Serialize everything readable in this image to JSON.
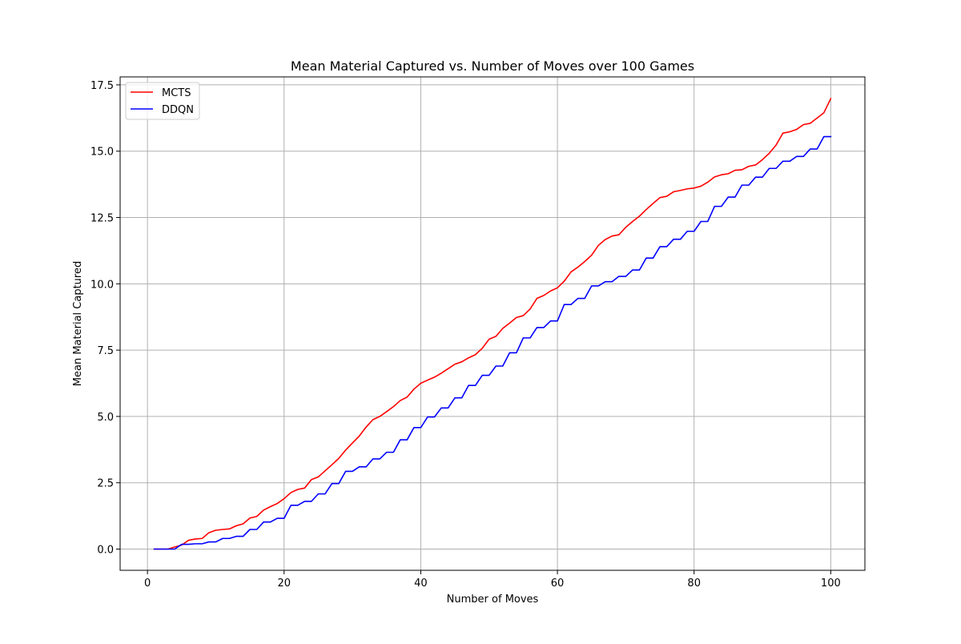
{
  "chart_data": {
    "type": "line",
    "title": "Mean Material Captured vs. Number of Moves over 100 Games",
    "xlabel": "Number of Moves",
    "ylabel": "Mean Material Captured",
    "xlim": [
      -4,
      105
    ],
    "ylim": [
      -0.8,
      17.8
    ],
    "xticks": [
      0,
      20,
      40,
      60,
      80,
      100
    ],
    "xtick_labels": [
      "0",
      "20",
      "40",
      "60",
      "80",
      "100"
    ],
    "yticks": [
      0,
      2.5,
      5,
      7.5,
      10,
      12.5,
      15,
      17.5
    ],
    "ytick_labels": [
      "0.0",
      "2.5",
      "5.0",
      "7.5",
      "10.0",
      "12.5",
      "15.0",
      "17.5"
    ],
    "grid": true,
    "legend_position": "upper-left",
    "series": [
      {
        "name": "MCTS",
        "color": "#ff0000",
        "points": [
          [
            1,
            0
          ],
          [
            2,
            0
          ],
          [
            3,
            0
          ],
          [
            4,
            0.08
          ],
          [
            5,
            0.15
          ],
          [
            6,
            0.33
          ],
          [
            7,
            0.38
          ],
          [
            8,
            0.4
          ],
          [
            9,
            0.62
          ],
          [
            10,
            0.71
          ],
          [
            11,
            0.74
          ],
          [
            12,
            0.76
          ],
          [
            13,
            0.88
          ],
          [
            14,
            0.95
          ],
          [
            15,
            1.17
          ],
          [
            16,
            1.23
          ],
          [
            17,
            1.47
          ],
          [
            18,
            1.6
          ],
          [
            19,
            1.72
          ],
          [
            20,
            1.9
          ],
          [
            21,
            2.13
          ],
          [
            22,
            2.25
          ],
          [
            23,
            2.3
          ],
          [
            24,
            2.62
          ],
          [
            25,
            2.72
          ],
          [
            26,
            2.95
          ],
          [
            27,
            3.18
          ],
          [
            28,
            3.42
          ],
          [
            29,
            3.73
          ],
          [
            30,
            4.0
          ],
          [
            31,
            4.26
          ],
          [
            32,
            4.6
          ],
          [
            33,
            4.88
          ],
          [
            34,
            5.0
          ],
          [
            35,
            5.18
          ],
          [
            36,
            5.37
          ],
          [
            37,
            5.6
          ],
          [
            38,
            5.73
          ],
          [
            39,
            6.03
          ],
          [
            40,
            6.25
          ],
          [
            41,
            6.37
          ],
          [
            42,
            6.48
          ],
          [
            43,
            6.63
          ],
          [
            44,
            6.8
          ],
          [
            45,
            6.97
          ],
          [
            46,
            7.06
          ],
          [
            47,
            7.21
          ],
          [
            48,
            7.33
          ],
          [
            49,
            7.57
          ],
          [
            50,
            7.91
          ],
          [
            51,
            8.02
          ],
          [
            52,
            8.32
          ],
          [
            53,
            8.52
          ],
          [
            54,
            8.73
          ],
          [
            55,
            8.8
          ],
          [
            56,
            9.05
          ],
          [
            57,
            9.45
          ],
          [
            58,
            9.56
          ],
          [
            59,
            9.73
          ],
          [
            60,
            9.85
          ],
          [
            61,
            10.1
          ],
          [
            62,
            10.45
          ],
          [
            63,
            10.63
          ],
          [
            64,
            10.84
          ],
          [
            65,
            11.08
          ],
          [
            66,
            11.45
          ],
          [
            67,
            11.67
          ],
          [
            68,
            11.8
          ],
          [
            69,
            11.85
          ],
          [
            70,
            12.13
          ],
          [
            71,
            12.35
          ],
          [
            72,
            12.55
          ],
          [
            73,
            12.8
          ],
          [
            74,
            13.03
          ],
          [
            75,
            13.25
          ],
          [
            76,
            13.3
          ],
          [
            77,
            13.47
          ],
          [
            78,
            13.52
          ],
          [
            79,
            13.58
          ],
          [
            80,
            13.61
          ],
          [
            81,
            13.68
          ],
          [
            82,
            13.83
          ],
          [
            83,
            14.03
          ],
          [
            84,
            14.11
          ],
          [
            85,
            14.15
          ],
          [
            86,
            14.28
          ],
          [
            87,
            14.3
          ],
          [
            88,
            14.43
          ],
          [
            89,
            14.48
          ],
          [
            90,
            14.68
          ],
          [
            91,
            14.92
          ],
          [
            92,
            15.23
          ],
          [
            93,
            15.68
          ],
          [
            94,
            15.73
          ],
          [
            95,
            15.82
          ],
          [
            96,
            16.0
          ],
          [
            97,
            16.05
          ],
          [
            98,
            16.25
          ],
          [
            99,
            16.45
          ],
          [
            100,
            16.98
          ]
        ]
      },
      {
        "name": "DDQN",
        "color": "#0000ff",
        "points": [
          [
            1,
            0
          ],
          [
            2,
            0
          ],
          [
            3,
            0
          ],
          [
            4,
            0
          ],
          [
            5,
            0.18
          ],
          [
            6,
            0.18
          ],
          [
            7,
            0.2
          ],
          [
            8,
            0.2
          ],
          [
            9,
            0.27
          ],
          [
            10,
            0.27
          ],
          [
            11,
            0.4
          ],
          [
            12,
            0.4
          ],
          [
            13,
            0.48
          ],
          [
            14,
            0.48
          ],
          [
            15,
            0.74
          ],
          [
            16,
            0.74
          ],
          [
            17,
            1.02
          ],
          [
            18,
            1.02
          ],
          [
            19,
            1.16
          ],
          [
            20,
            1.16
          ],
          [
            21,
            1.65
          ],
          [
            22,
            1.65
          ],
          [
            23,
            1.8
          ],
          [
            24,
            1.8
          ],
          [
            25,
            2.08
          ],
          [
            26,
            2.08
          ],
          [
            27,
            2.47
          ],
          [
            28,
            2.47
          ],
          [
            29,
            2.93
          ],
          [
            30,
            2.93
          ],
          [
            31,
            3.1
          ],
          [
            32,
            3.1
          ],
          [
            33,
            3.4
          ],
          [
            34,
            3.4
          ],
          [
            35,
            3.65
          ],
          [
            36,
            3.65
          ],
          [
            37,
            4.12
          ],
          [
            38,
            4.12
          ],
          [
            39,
            4.58
          ],
          [
            40,
            4.58
          ],
          [
            41,
            4.98
          ],
          [
            42,
            4.98
          ],
          [
            43,
            5.32
          ],
          [
            44,
            5.32
          ],
          [
            45,
            5.7
          ],
          [
            46,
            5.7
          ],
          [
            47,
            6.17
          ],
          [
            48,
            6.17
          ],
          [
            49,
            6.55
          ],
          [
            50,
            6.55
          ],
          [
            51,
            6.9
          ],
          [
            52,
            6.9
          ],
          [
            53,
            7.4
          ],
          [
            54,
            7.4
          ],
          [
            55,
            7.96
          ],
          [
            56,
            7.96
          ],
          [
            57,
            8.35
          ],
          [
            58,
            8.35
          ],
          [
            59,
            8.6
          ],
          [
            60,
            8.6
          ],
          [
            61,
            9.22
          ],
          [
            62,
            9.22
          ],
          [
            63,
            9.45
          ],
          [
            64,
            9.45
          ],
          [
            65,
            9.92
          ],
          [
            66,
            9.92
          ],
          [
            67,
            10.08
          ],
          [
            68,
            10.08
          ],
          [
            69,
            10.28
          ],
          [
            70,
            10.28
          ],
          [
            71,
            10.52
          ],
          [
            72,
            10.52
          ],
          [
            73,
            10.97
          ],
          [
            74,
            10.97
          ],
          [
            75,
            11.4
          ],
          [
            76,
            11.4
          ],
          [
            77,
            11.68
          ],
          [
            78,
            11.68
          ],
          [
            79,
            11.98
          ],
          [
            80,
            11.98
          ],
          [
            81,
            12.35
          ],
          [
            82,
            12.35
          ],
          [
            83,
            12.92
          ],
          [
            84,
            12.92
          ],
          [
            85,
            13.27
          ],
          [
            86,
            13.27
          ],
          [
            87,
            13.72
          ],
          [
            88,
            13.72
          ],
          [
            89,
            14.02
          ],
          [
            90,
            14.02
          ],
          [
            91,
            14.35
          ],
          [
            92,
            14.35
          ],
          [
            93,
            14.62
          ],
          [
            94,
            14.62
          ],
          [
            95,
            14.8
          ],
          [
            96,
            14.8
          ],
          [
            97,
            15.08
          ],
          [
            98,
            15.08
          ],
          [
            99,
            15.55
          ],
          [
            100,
            15.55
          ]
        ]
      }
    ]
  }
}
